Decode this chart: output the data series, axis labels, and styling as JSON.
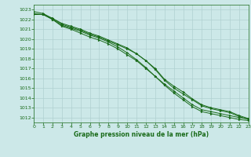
{
  "xlabel": "Graphe pression niveau de la mer (hPa)",
  "ylim": [
    1011.5,
    1023.5
  ],
  "xlim": [
    0,
    23
  ],
  "yticks": [
    1012,
    1013,
    1014,
    1015,
    1016,
    1017,
    1018,
    1019,
    1020,
    1021,
    1022,
    1023
  ],
  "xticks": [
    0,
    1,
    2,
    3,
    4,
    5,
    6,
    7,
    8,
    9,
    10,
    11,
    12,
    13,
    14,
    15,
    16,
    17,
    18,
    19,
    20,
    21,
    22,
    23
  ],
  "background_color": "#cce8e8",
  "grid_color": "#b0d0d0",
  "line_color": "#1a6b1a",
  "series": [
    [
      1022.8,
      1022.6,
      1022.1,
      1021.6,
      1021.3,
      1021.0,
      1020.6,
      1020.3,
      1019.9,
      1019.5,
      1019.1,
      1018.5,
      1017.8,
      1017.0,
      1015.9,
      1015.2,
      1014.6,
      1013.9,
      1013.3,
      1013.0,
      1012.8,
      1012.6,
      1012.2,
      1011.9
    ],
    [
      1022.6,
      1022.5,
      1022.0,
      1021.4,
      1021.1,
      1020.8,
      1020.4,
      1020.1,
      1019.7,
      1019.2,
      1018.6,
      1017.9,
      1017.1,
      1016.2,
      1015.4,
      1014.7,
      1014.0,
      1013.3,
      1012.8,
      1012.6,
      1012.4,
      1012.2,
      1012.0,
      1011.85
    ],
    [
      1022.5,
      1022.5,
      1022.1,
      1021.5,
      1021.2,
      1020.9,
      1020.5,
      1020.2,
      1019.8,
      1019.4,
      1019.0,
      1018.5,
      1017.8,
      1016.9,
      1015.8,
      1015.0,
      1014.4,
      1013.8,
      1013.2,
      1012.9,
      1012.7,
      1012.5,
      1012.1,
      1011.8
    ],
    [
      1022.5,
      1022.5,
      1022.0,
      1021.3,
      1021.0,
      1020.6,
      1020.2,
      1019.9,
      1019.5,
      1019.0,
      1018.4,
      1017.8,
      1017.0,
      1016.2,
      1015.3,
      1014.5,
      1013.8,
      1013.1,
      1012.6,
      1012.4,
      1012.2,
      1012.0,
      1011.8,
      1011.7
    ]
  ]
}
